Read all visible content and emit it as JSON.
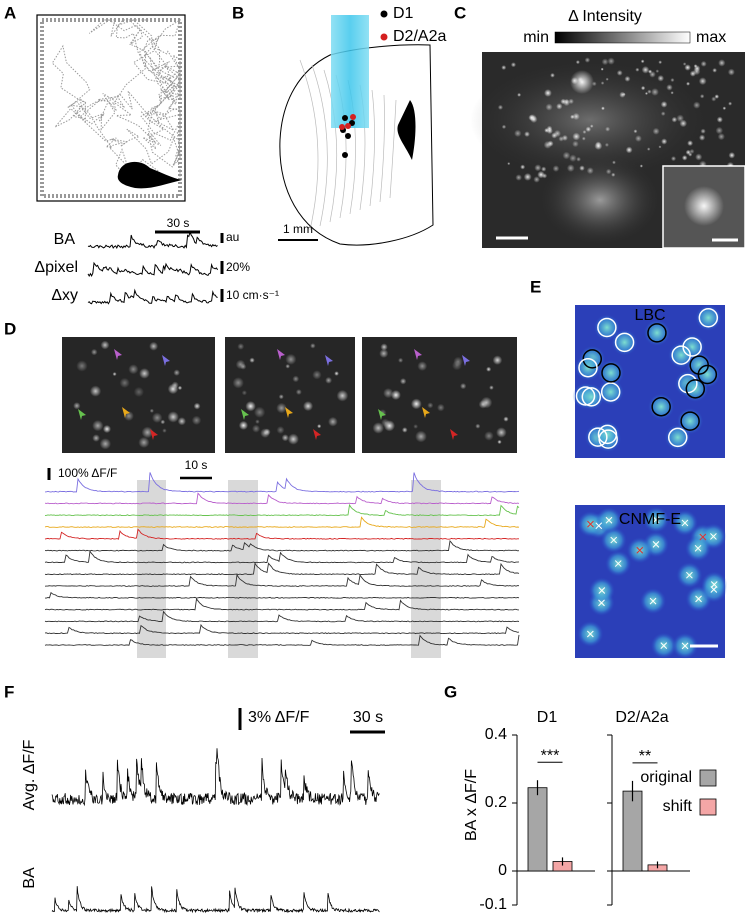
{
  "panel_labels": [
    "A",
    "B",
    "C",
    "D",
    "E",
    "F",
    "G"
  ],
  "panel_a": {
    "traces": [
      "BA",
      "Δpixel",
      "Δxy"
    ],
    "time_scale": "30 s",
    "scales": [
      "au",
      "20%",
      "10 cm·s⁻¹"
    ]
  },
  "panel_b": {
    "legend": [
      {
        "name": "D1",
        "color": "#000000"
      },
      {
        "name": "D2/A2a",
        "color": "#d42020"
      }
    ],
    "scale": "1 mm"
  },
  "panel_c": {
    "colorbar_title": "Δ Intensity",
    "min": "min",
    "max": "max"
  },
  "panel_d": {
    "amplitude_scale": "100% ΔF/F",
    "time_scale": "10 s"
  },
  "panel_e": {
    "titles": [
      "LBC",
      "CNMF-E"
    ]
  },
  "panel_f": {
    "ylabels": [
      "Avg. ΔF/F",
      "BA"
    ],
    "amplitude_scale": "3% ΔF/F",
    "time_scale": "30 s"
  },
  "chart_data": {
    "type": "bar",
    "ylabel": "BA x ΔF/F",
    "categories": [
      "D1",
      "D2/A2a"
    ],
    "series": [
      {
        "name": "original",
        "color": "#a6a6a6",
        "values": [
          0.245,
          0.235
        ],
        "errors": [
          0.022,
          0.03
        ]
      },
      {
        "name": "shift",
        "color": "#f4a6a6",
        "values": [
          0.028,
          0.018
        ],
        "errors": [
          0.012,
          0.01
        ]
      }
    ],
    "annotations": [
      "***",
      "**"
    ],
    "ylim": [
      -0.1,
      0.4
    ],
    "yticks": [
      -0.1,
      0,
      0.2,
      0.4
    ]
  }
}
